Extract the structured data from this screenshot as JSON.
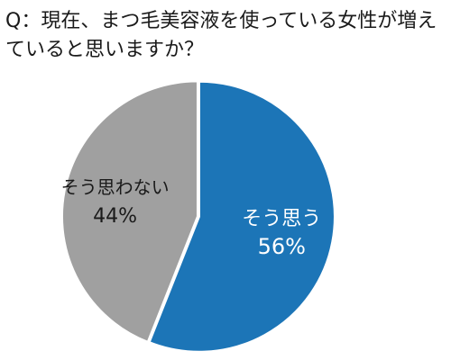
{
  "title": "Q：現在、まつ毛美容液を使っている女性が増えていると思いますか？",
  "colors": {
    "yes": "#1c75b7",
    "no": "#a0a0a0",
    "yes_text": "#ffffff",
    "no_text": "#1a1a1a"
  },
  "chart_data": {
    "type": "pie",
    "title": "Q：現在、まつ毛美容液を使っている女性が増えていると思いますか？",
    "slices": [
      {
        "label": "そう思う",
        "value": 56,
        "value_label": "56%",
        "color": "#1c75b7"
      },
      {
        "label": "そう思わない",
        "value": 44,
        "value_label": "44%",
        "color": "#a0a0a0"
      }
    ],
    "start": "12 o'clock",
    "direction": "clockwise",
    "exploded": "そう思う",
    "legend": "none",
    "data_labels": "inside"
  }
}
